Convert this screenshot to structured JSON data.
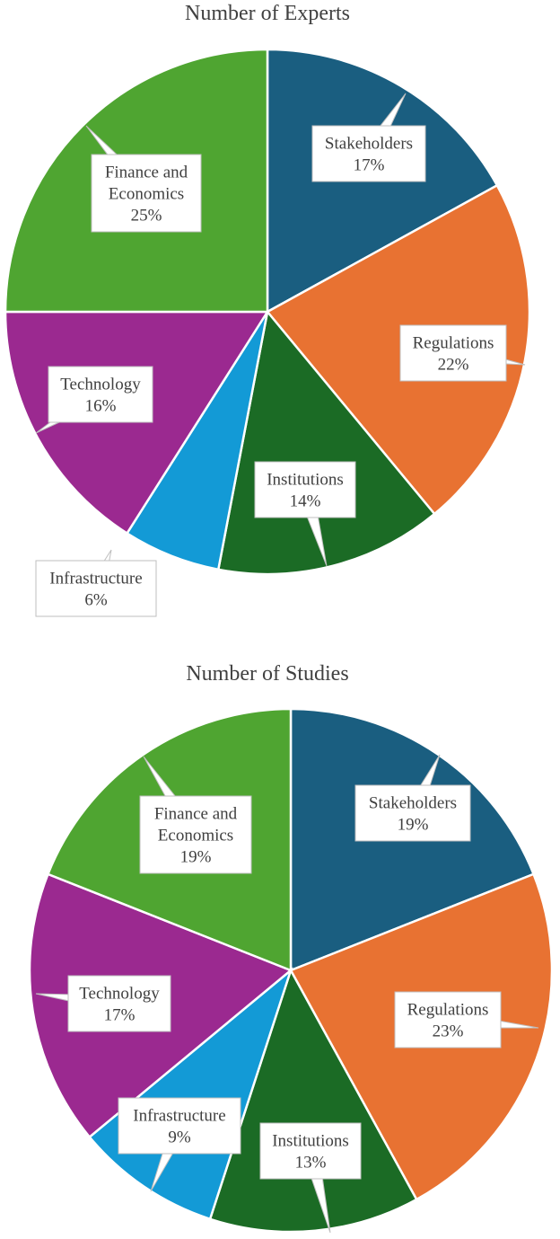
{
  "chart_data": [
    {
      "type": "pie",
      "title": "Number of Experts",
      "categories": [
        "Stakeholders",
        "Regulations",
        "Institutions",
        "Infrastructure",
        "Technology",
        "Finance and Economics"
      ],
      "values": [
        17,
        22,
        14,
        6,
        16,
        25
      ],
      "value_labels": [
        "17%",
        "22%",
        "14%",
        "6%",
        "16%",
        "25%"
      ],
      "colors": [
        "#1a5e80",
        "#e87232",
        "#1b6b25",
        "#139ad6",
        "#9b2990",
        "#4fa531"
      ]
    },
    {
      "type": "pie",
      "title": "Number of Studies",
      "categories": [
        "Stakeholders",
        "Regulations",
        "Institutions",
        "Infrastructure",
        "Technology",
        "Finance and Economics"
      ],
      "values": [
        19,
        23,
        13,
        9,
        17,
        19
      ],
      "value_labels": [
        "19%",
        "23%",
        "13%",
        "9%",
        "17%",
        "19%"
      ],
      "colors": [
        "#1a5e80",
        "#e87232",
        "#1b6b25",
        "#139ad6",
        "#9b2990",
        "#4fa531"
      ]
    }
  ]
}
